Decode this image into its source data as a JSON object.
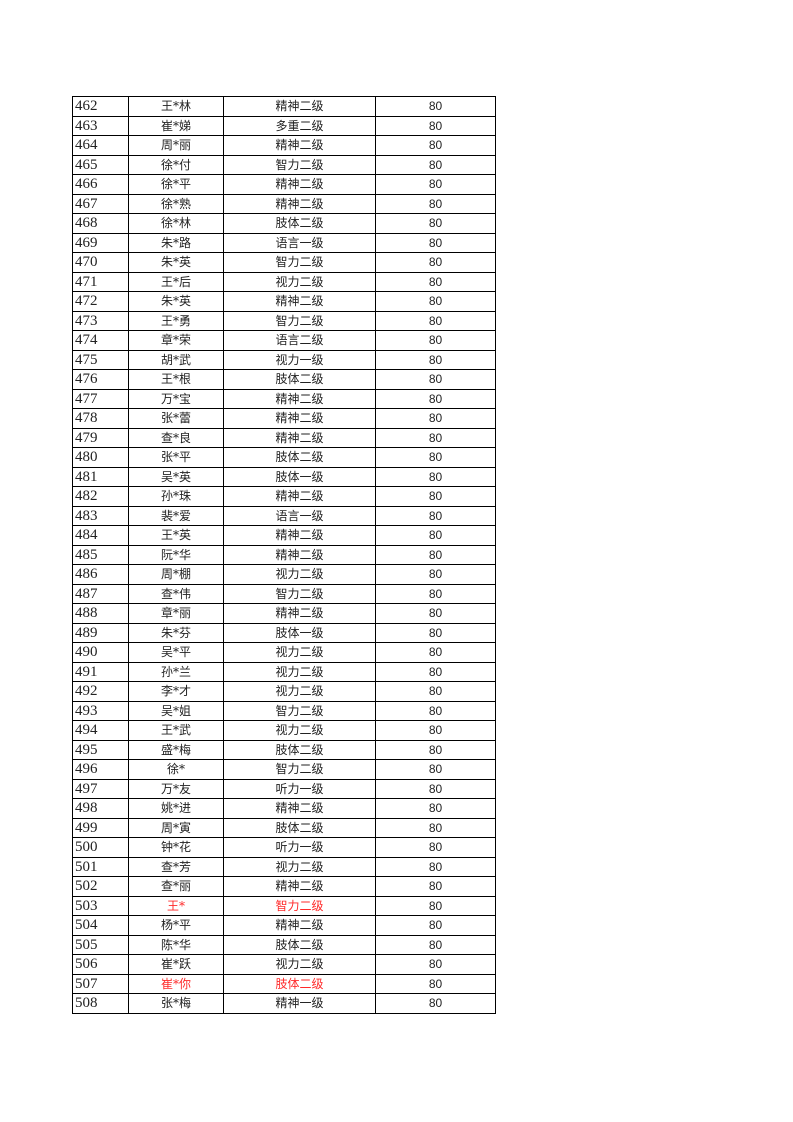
{
  "colors": {
    "highlight": "#ff2a2a",
    "text": "#222222",
    "border": "#000000"
  },
  "rows": [
    {
      "no": "462",
      "name": "王*林",
      "type": "精神二级",
      "score": "80"
    },
    {
      "no": "463",
      "name": "崔*娣",
      "type": "多重二级",
      "score": "80"
    },
    {
      "no": "464",
      "name": "周*丽",
      "type": "精神二级",
      "score": "80"
    },
    {
      "no": "465",
      "name": "徐*付",
      "type": "智力二级",
      "score": "80"
    },
    {
      "no": "466",
      "name": "徐*平",
      "type": "精神二级",
      "score": "80"
    },
    {
      "no": "467",
      "name": "徐*熟",
      "type": "精神二级",
      "score": "80"
    },
    {
      "no": "468",
      "name": "徐*林",
      "type": "肢体二级",
      "score": "80"
    },
    {
      "no": "469",
      "name": "朱*路",
      "type": "语言一级",
      "score": "80"
    },
    {
      "no": "470",
      "name": "朱*英",
      "type": "智力二级",
      "score": "80"
    },
    {
      "no": "471",
      "name": "王*后",
      "type": "视力二级",
      "score": "80"
    },
    {
      "no": "472",
      "name": "朱*英",
      "type": "精神二级",
      "score": "80"
    },
    {
      "no": "473",
      "name": "王*勇",
      "type": "智力二级",
      "score": "80"
    },
    {
      "no": "474",
      "name": "章*荣",
      "type": "语言二级",
      "score": "80"
    },
    {
      "no": "475",
      "name": "胡*武",
      "type": "视力一级",
      "score": "80"
    },
    {
      "no": "476",
      "name": "王*根",
      "type": "肢体二级",
      "score": "80"
    },
    {
      "no": "477",
      "name": "万*宝",
      "type": "精神二级",
      "score": "80"
    },
    {
      "no": "478",
      "name": "张*蕾",
      "type": "精神二级",
      "score": "80"
    },
    {
      "no": "479",
      "name": "查*良",
      "type": "精神二级",
      "score": "80"
    },
    {
      "no": "480",
      "name": "张*平",
      "type": "肢体二级",
      "score": "80"
    },
    {
      "no": "481",
      "name": "吴*英",
      "type": "肢体一级",
      "score": "80"
    },
    {
      "no": "482",
      "name": "孙*珠",
      "type": "精神二级",
      "score": "80"
    },
    {
      "no": "483",
      "name": "裴*爱",
      "type": "语言一级",
      "score": "80"
    },
    {
      "no": "484",
      "name": "王*英",
      "type": "精神二级",
      "score": "80"
    },
    {
      "no": "485",
      "name": "阮*华",
      "type": "精神二级",
      "score": "80"
    },
    {
      "no": "486",
      "name": "周*棚",
      "type": "视力二级",
      "score": "80"
    },
    {
      "no": "487",
      "name": "查*伟",
      "type": "智力二级",
      "score": "80"
    },
    {
      "no": "488",
      "name": "章*丽",
      "type": "精神二级",
      "score": "80"
    },
    {
      "no": "489",
      "name": "朱*芬",
      "type": "肢体一级",
      "score": "80"
    },
    {
      "no": "490",
      "name": "吴*平",
      "type": "视力二级",
      "score": "80"
    },
    {
      "no": "491",
      "name": "孙*兰",
      "type": "视力二级",
      "score": "80"
    },
    {
      "no": "492",
      "name": "李*才",
      "type": "视力二级",
      "score": "80"
    },
    {
      "no": "493",
      "name": "吴*姐",
      "type": "智力二级",
      "score": "80"
    },
    {
      "no": "494",
      "name": "王*武",
      "type": "视力二级",
      "score": "80"
    },
    {
      "no": "495",
      "name": "盛*梅",
      "type": "肢体二级",
      "score": "80"
    },
    {
      "no": "496",
      "name": "徐*",
      "type": "智力二级",
      "score": "80"
    },
    {
      "no": "497",
      "name": "万*友",
      "type": "听力一级",
      "score": "80"
    },
    {
      "no": "498",
      "name": "姚*进",
      "type": "精神二级",
      "score": "80"
    },
    {
      "no": "499",
      "name": "周*寅",
      "type": "肢体二级",
      "score": "80"
    },
    {
      "no": "500",
      "name": "钟*花",
      "type": "听力一级",
      "score": "80"
    },
    {
      "no": "501",
      "name": "查*芳",
      "type": "视力二级",
      "score": "80"
    },
    {
      "no": "502",
      "name": "查*丽",
      "type": "精神二级",
      "score": "80"
    },
    {
      "no": "503",
      "name": "王*",
      "type": "智力二级",
      "score": "80",
      "highlight": true
    },
    {
      "no": "504",
      "name": "杨*平",
      "type": "精神二级",
      "score": "80"
    },
    {
      "no": "505",
      "name": "陈*华",
      "type": "肢体二级",
      "score": "80"
    },
    {
      "no": "506",
      "name": "崔*跃",
      "type": "视力二级",
      "score": "80"
    },
    {
      "no": "507",
      "name": "崔*你",
      "type": "肢体二级",
      "score": "80",
      "highlight": true
    },
    {
      "no": "508",
      "name": "张*梅",
      "type": "精神一级",
      "score": "80"
    }
  ]
}
